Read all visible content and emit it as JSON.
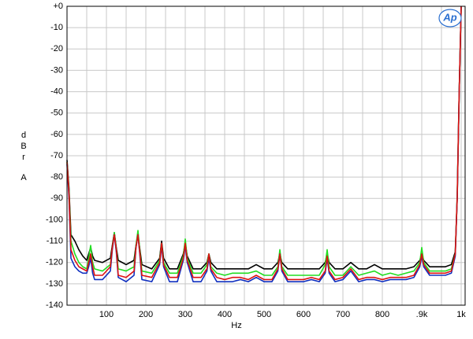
{
  "chart_data": {
    "type": "line",
    "ylabel_lines": [
      "d",
      "B",
      "r",
      "A"
    ],
    "xlabel": "Hz",
    "logo": "Ap",
    "x": [
      0,
      5,
      10,
      20,
      30,
      40,
      50,
      55,
      60,
      65,
      70,
      90,
      110,
      115,
      120,
      125,
      130,
      150,
      170,
      175,
      180,
      185,
      190,
      215,
      235,
      240,
      245,
      260,
      280,
      295,
      300,
      305,
      320,
      340,
      355,
      360,
      365,
      380,
      400,
      420,
      440,
      460,
      480,
      500,
      520,
      535,
      540,
      545,
      560,
      580,
      600,
      620,
      640,
      655,
      660,
      665,
      680,
      700,
      720,
      740,
      760,
      780,
      800,
      820,
      840,
      860,
      880,
      895,
      900,
      905,
      920,
      940,
      960,
      975,
      985,
      990,
      995,
      1000
    ],
    "series": [
      {
        "color": "#000000",
        "values": [
          -72,
          -85,
          -107,
          -110,
          -114,
          -117,
          -119,
          -116,
          -113,
          -117,
          -119,
          -120,
          -118,
          -112,
          -106,
          -113,
          -119,
          -121,
          -119,
          -112,
          -107,
          -114,
          -121,
          -123,
          -118,
          -110,
          -118,
          -123,
          -123,
          -116,
          -111,
          -117,
          -123,
          -123,
          -120,
          -116,
          -120,
          -123,
          -123,
          -123,
          -123,
          -123,
          -121,
          -123,
          -123,
          -120,
          -116,
          -120,
          -123,
          -123,
          -123,
          -123,
          -123,
          -120,
          -116,
          -120,
          -123,
          -123,
          -120,
          -123,
          -123,
          -121,
          -123,
          -123,
          -123,
          -123,
          -122,
          -119,
          -116,
          -119,
          -122,
          -122,
          -122,
          -121,
          -115,
          -90,
          -40,
          0
        ]
      },
      {
        "color": "#22dd22",
        "values": [
          -73,
          -87,
          -110,
          -116,
          -120,
          -122,
          -123,
          -118,
          -112,
          -120,
          -123,
          -124,
          -121,
          -113,
          -106,
          -114,
          -123,
          -124,
          -122,
          -112,
          -105,
          -115,
          -124,
          -125,
          -119,
          -111,
          -120,
          -125,
          -125,
          -117,
          -109,
          -118,
          -125,
          -125,
          -121,
          -116,
          -122,
          -125,
          -126,
          -125,
          -125,
          -125,
          -124,
          -126,
          -126,
          -122,
          -114,
          -122,
          -126,
          -126,
          -126,
          -126,
          -126,
          -121,
          -114,
          -122,
          -126,
          -126,
          -122,
          -126,
          -125,
          -124,
          -126,
          -125,
          -126,
          -125,
          -124,
          -120,
          -113,
          -120,
          -124,
          -124,
          -124,
          -123,
          -116,
          -88,
          -40,
          0
        ]
      },
      {
        "color": "#1030c0",
        "values": [
          -74,
          -90,
          -118,
          -122,
          -124,
          -125,
          -125,
          -122,
          -118,
          -125,
          -128,
          -128,
          -124,
          -114,
          -107,
          -115,
          -127,
          -129,
          -126,
          -113,
          -107,
          -117,
          -128,
          -129,
          -121,
          -112,
          -122,
          -129,
          -129,
          -119,
          -112,
          -120,
          -129,
          -129,
          -124,
          -118,
          -124,
          -129,
          -129,
          -129,
          -128,
          -129,
          -127,
          -129,
          -129,
          -124,
          -116,
          -124,
          -129,
          -129,
          -129,
          -128,
          -129,
          -125,
          -118,
          -125,
          -129,
          -128,
          -124,
          -129,
          -128,
          -128,
          -129,
          -128,
          -128,
          -128,
          -127,
          -122,
          -117,
          -122,
          -126,
          -126,
          -126,
          -125,
          -117,
          -89,
          -40,
          0
        ]
      },
      {
        "color": "#dd1111",
        "values": [
          -73,
          -88,
          -114,
          -119,
          -122,
          -123,
          -124,
          -120,
          -116,
          -122,
          -126,
          -126,
          -122,
          -113,
          -107,
          -114,
          -126,
          -127,
          -124,
          -113,
          -107,
          -116,
          -126,
          -127,
          -120,
          -111,
          -121,
          -127,
          -127,
          -118,
          -111,
          -119,
          -127,
          -127,
          -123,
          -116,
          -123,
          -127,
          -128,
          -127,
          -127,
          -128,
          -126,
          -128,
          -128,
          -123,
          -116,
          -123,
          -128,
          -128,
          -128,
          -127,
          -128,
          -124,
          -117,
          -124,
          -128,
          -127,
          -123,
          -128,
          -127,
          -127,
          -128,
          -127,
          -127,
          -127,
          -126,
          -121,
          -116,
          -121,
          -125,
          -125,
          -125,
          -124,
          -116,
          -89,
          -40,
          0
        ]
      }
    ],
    "xlim": [
      0,
      1010
    ],
    "ylim": [
      -140,
      0
    ],
    "xticks": [
      100,
      200,
      300,
      400,
      500,
      600,
      700,
      800,
      {
        "value": 900,
        "label": ".9k"
      },
      {
        "value": 1000,
        "label": "1k"
      }
    ],
    "xminor": [
      50,
      150,
      250,
      350,
      450,
      550,
      650,
      750,
      850,
      950
    ],
    "yticks": [
      {
        "value": 0,
        "label": "+0"
      },
      -10,
      -20,
      -30,
      -40,
      -50,
      -60,
      -70,
      -80,
      -90,
      -100,
      -110,
      -120,
      -130,
      -140
    ],
    "grid": true
  }
}
